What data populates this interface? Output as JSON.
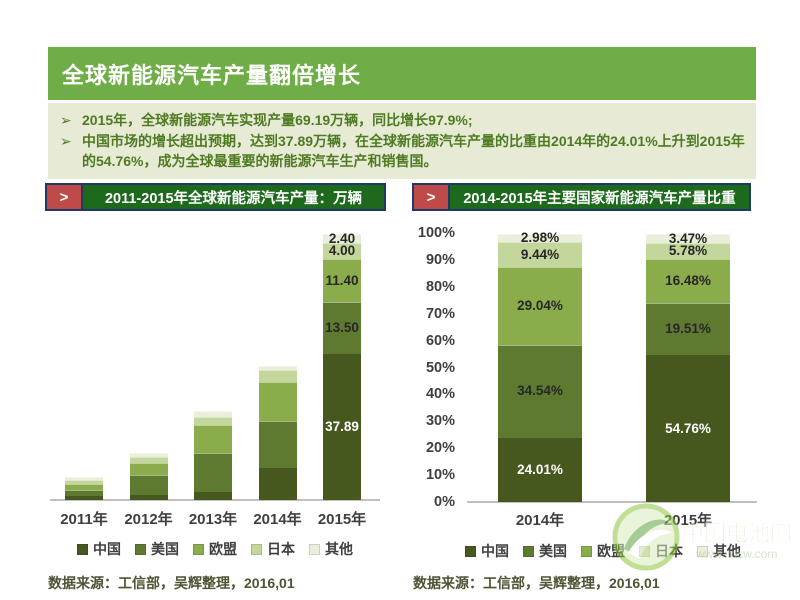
{
  "header": {
    "title": "全球新能源汽车产量翻倍增长",
    "bg_color": "#6FAE47"
  },
  "summary": {
    "bg_color": "#E7EBD6",
    "text_color": "#4E7A22",
    "bullet_char": "➢",
    "bullets": [
      "2015年，全球新能源汽车实现产量69.19万辆，同比增长97.9%;",
      "中国市场的增长超出预期，达到37.89万辆，在全球新能源汽车产量的比重由2014年的24.01%上升到2015年的54.76%，成为全球最重要的新能源汽车生产和销售国。"
    ]
  },
  "title_bars": {
    "marker": ">",
    "marker_bg": "#BE4B48",
    "bar_bg": "#1D6A1D",
    "border_color": "#203864"
  },
  "charts": {
    "left": {
      "source": "数据来源：工信部，吴辉整理，2016,01"
    },
    "right": {
      "source": "数据来源：工信部，吴辉整理，2016,01"
    }
  },
  "watermark": {
    "name": "中国电池网",
    "url": "www.itdcw.com"
  },
  "chart_data": [
    {
      "type": "bar",
      "stacked": true,
      "title": "2011-2015年全球新能源汽车产量：万辆",
      "unit": "万辆",
      "categories": [
        "2011年",
        "2012年",
        "2013年",
        "2014年",
        "2015年"
      ],
      "series": [
        {
          "name": "中国",
          "color": "#47581F",
          "label_color": "#FFFFFF",
          "values": [
            1.0,
            1.3,
            2.2,
            8.39,
            37.89
          ],
          "labels": [
            null,
            null,
            null,
            null,
            "37.89"
          ]
        },
        {
          "name": "美国",
          "color": "#5E7A31",
          "label_color": "#262626",
          "values": [
            1.6,
            5.2,
            9.9,
            12.08,
            13.5
          ],
          "labels": [
            null,
            null,
            null,
            null,
            "13.50"
          ]
        },
        {
          "name": "欧盟",
          "color": "#8AAC4A",
          "label_color": "#262626",
          "values": [
            1.5,
            3.2,
            7.3,
            10.15,
            11.4
          ],
          "labels": [
            null,
            null,
            null,
            null,
            "11.40"
          ]
        },
        {
          "name": "日本",
          "color": "#C3D69B",
          "label_color": "#262626",
          "values": [
            1.2,
            1.4,
            2.3,
            3.3,
            4.0
          ],
          "labels": [
            null,
            null,
            null,
            null,
            "4.00"
          ]
        },
        {
          "name": "其他",
          "color": "#E9EFDA",
          "label_color": "#262626",
          "values": [
            0.8,
            1.0,
            1.4,
            1.04,
            2.4
          ],
          "labels": [
            null,
            null,
            null,
            null,
            "2.40"
          ]
        }
      ],
      "ylim": [
        0,
        69.19
      ],
      "grid": false,
      "legend_position": "bottom"
    },
    {
      "type": "bar",
      "stacked": true,
      "percent": true,
      "title": "2014-2015年主要国家新能源汽车产量比重",
      "categories": [
        "2014年",
        "2015年"
      ],
      "series": [
        {
          "name": "中国",
          "color": "#47581F",
          "label_color": "#FFFFFF",
          "values": [
            24.01,
            54.76
          ],
          "labels": [
            "24.01%",
            "54.76%"
          ]
        },
        {
          "name": "美国",
          "color": "#5E7A31",
          "label_color": "#262626",
          "values": [
            34.54,
            19.51
          ],
          "labels": [
            "34.54%",
            "19.51%"
          ]
        },
        {
          "name": "欧盟",
          "color": "#8AAC4A",
          "label_color": "#262626",
          "values": [
            29.04,
            16.48
          ],
          "labels": [
            "29.04%",
            "16.48%"
          ]
        },
        {
          "name": "日本",
          "color": "#C3D69B",
          "label_color": "#262626",
          "values": [
            9.44,
            5.78
          ],
          "labels": [
            "9.44%",
            "5.78%"
          ]
        },
        {
          "name": "其他",
          "color": "#E9EFDA",
          "label_color": "#262626",
          "values": [
            2.98,
            3.47
          ],
          "labels": [
            "2.98%",
            "3.47%"
          ]
        }
      ],
      "y_ticks": [
        "0%",
        "10%",
        "20%",
        "30%",
        "40%",
        "50%",
        "60%",
        "70%",
        "80%",
        "90%",
        "100%"
      ],
      "ylim": [
        0,
        100
      ],
      "grid": false,
      "legend_position": "bottom"
    }
  ],
  "colors": {
    "axis_line": "#C0C0C0",
    "source_text": "#4C5433"
  }
}
